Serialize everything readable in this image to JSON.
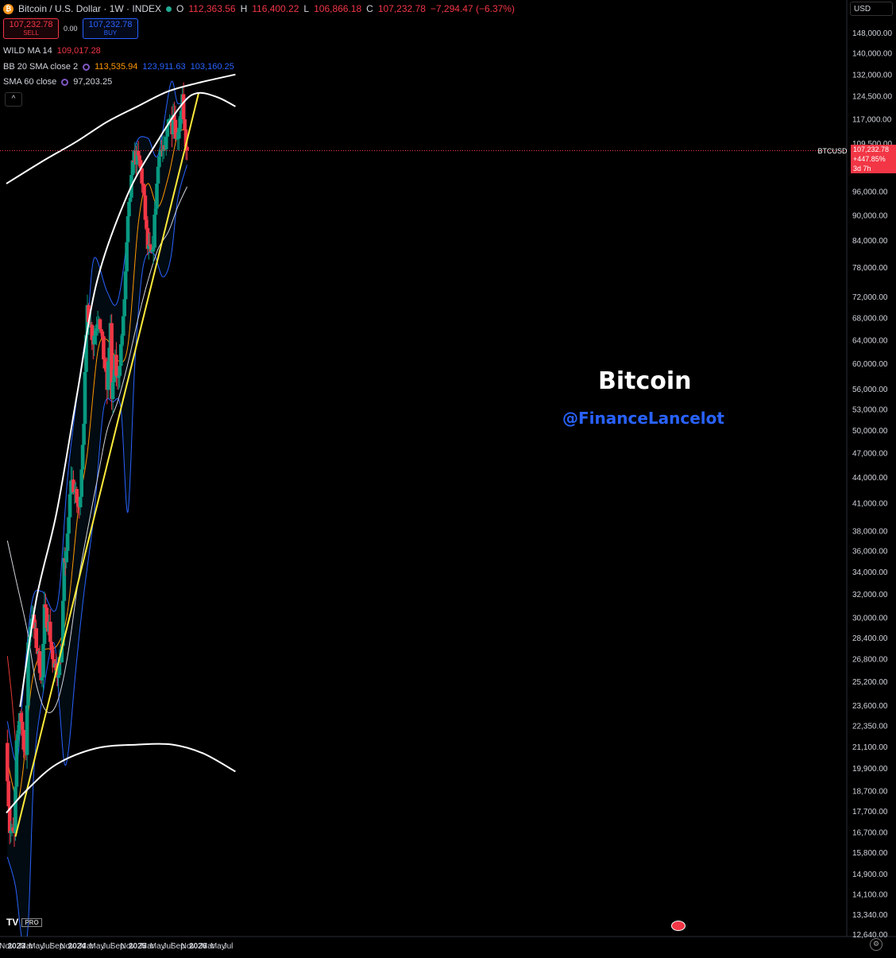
{
  "header": {
    "symbol": "Bitcoin / U.S. Dollar · 1W · INDEX",
    "o_label": "O",
    "o": "112,363.56",
    "h_label": "H",
    "h": "116,400.22",
    "l_label": "L",
    "l": "106,866.18",
    "c_label": "C",
    "c": "107,232.78",
    "change": "−7,294.47 (−6.37%)"
  },
  "trade": {
    "sell_price": "107,232.78",
    "sell_label": "SELL",
    "spread": "0.00",
    "buy_price": "107,232.78",
    "buy_label": "BUY"
  },
  "indicators": [
    {
      "name": "WILD MA 14",
      "values": [
        {
          "v": "109,017.28",
          "color": "#f23645"
        }
      ]
    },
    {
      "name": "BB 20 SMA close 2",
      "values": [
        {
          "v": "113,535.94",
          "color": "#ff9800"
        },
        {
          "v": "123,911.63",
          "color": "#2962ff"
        },
        {
          "v": "103,160.25",
          "color": "#2962ff"
        }
      ]
    },
    {
      "name": "SMA 60 close",
      "values": [
        {
          "v": "97,203.25",
          "color": "#d1d4dc"
        }
      ]
    }
  ],
  "currency": "USD",
  "last_price_tag": {
    "symbol": "BTCUSD",
    "price": "107,232.78",
    "change": "+447.85%",
    "countdown": "3d 7h"
  },
  "watermark": {
    "title": "Bitcoin",
    "handle": "@FinanceLancelot"
  },
  "branding": {
    "logo": "TV",
    "badge": "PRO"
  },
  "chart_data": {
    "type": "candlestick",
    "title": "Bitcoin / U.S. Dollar · 1W · INDEX",
    "y_scale": "log",
    "ylim": [
      12000,
      165000
    ],
    "y_ticks": [
      "148,000.00",
      "140,000.00",
      "132,000.00",
      "124,500.00",
      "117,000.00",
      "109,500.00",
      "96,000.00",
      "90,000.00",
      "84,000.00",
      "78,000.00",
      "72,000.00",
      "68,000.00",
      "64,000.00",
      "60,000.00",
      "56,000.00",
      "53,000.00",
      "50,000.00",
      "47,000.00",
      "44,000.00",
      "41,000.00",
      "38,000.00",
      "36,000.00",
      "34,000.00",
      "32,000.00",
      "30,000.00",
      "28,400.00",
      "26,800.00",
      "25,200.00",
      "23,600.00",
      "22,350.00",
      "21,100.00",
      "19,900.00",
      "18,700.00",
      "17,700.00",
      "16,700.00",
      "15,800.00",
      "14,900.00",
      "14,100.00",
      "13,340.00",
      "12,640.00"
    ],
    "x_ticks": [
      "Nov",
      "2023",
      "Mar",
      "May",
      "Jul",
      "Sep",
      "Nov",
      "2024",
      "Mar",
      "May",
      "Jul",
      "Sep",
      "Nov",
      "2025",
      "Mar",
      "May",
      "Jul",
      "Sep",
      "Nov",
      "2026",
      "Mar",
      "May",
      "Jul"
    ],
    "last_price": 107232.78,
    "anchors": [
      [
        "2022-11-07",
        21300
      ],
      [
        "2022-11-28",
        16800
      ],
      [
        "2022-12-26",
        16500
      ],
      [
        "2023-01-09",
        21000
      ],
      [
        "2023-01-30",
        23300
      ],
      [
        "2023-03-06",
        20200
      ],
      [
        "2023-03-20",
        28000
      ],
      [
        "2023-04-10",
        30300
      ],
      [
        "2023-05-01",
        28500
      ],
      [
        "2023-06-12",
        25300
      ],
      [
        "2023-06-26",
        30500
      ],
      [
        "2023-07-24",
        29300
      ],
      [
        "2023-08-21",
        26000
      ],
      [
        "2023-09-11",
        25800
      ],
      [
        "2023-10-09",
        27500
      ],
      [
        "2023-10-23",
        34500
      ],
      [
        "2023-11-13",
        37000
      ],
      [
        "2023-12-04",
        44000
      ],
      [
        "2024-01-22",
        40000
      ],
      [
        "2024-02-19",
        52000
      ],
      [
        "2024-03-11",
        70000
      ],
      [
        "2024-04-15",
        64000
      ],
      [
        "2024-05-20",
        69000
      ],
      [
        "2024-07-08",
        56000
      ],
      [
        "2024-07-29",
        67000
      ],
      [
        "2024-08-05",
        54000
      ],
      [
        "2024-08-26",
        60000
      ],
      [
        "2024-09-09",
        57000
      ],
      [
        "2024-10-14",
        67000
      ],
      [
        "2024-11-11",
        88000
      ],
      [
        "2024-12-16",
        106000
      ],
      [
        "2025-01-20",
        104000
      ],
      [
        "2025-02-10",
        97000
      ],
      [
        "2025-03-10",
        82000
      ],
      [
        "2025-04-07",
        80000
      ],
      [
        "2025-05-19",
        108000
      ],
      [
        "2025-06-23",
        106000
      ],
      [
        "2025-07-14",
        119000
      ],
      [
        "2025-08-04",
        115000
      ],
      [
        "2025-08-11",
        121000
      ],
      [
        "2025-09-01",
        110000
      ],
      [
        "2025-10-06",
        124000
      ],
      [
        "2025-10-13",
        115000
      ],
      [
        "2025-10-27",
        107232.78
      ]
    ],
    "series": [
      {
        "name": "WILD MA 14",
        "color": "#e53935",
        "points": [
          [
            "2022-11-07",
            27000
          ],
          [
            "2022-12-05",
            24000
          ],
          [
            "2023-01-02",
            20600
          ]
        ]
      },
      {
        "name": "BB 20 SMA close 2",
        "color": "#ff9800",
        "points": [
          [
            "2022-11-07",
            20300
          ],
          [
            "2023-01-02",
            18300
          ],
          [
            "2023-02-06",
            19500
          ],
          [
            "2023-04-03",
            25000
          ],
          [
            "2023-06-05",
            27300
          ],
          [
            "2023-09-04",
            27800
          ],
          [
            "2023-11-06",
            30500
          ],
          [
            "2024-01-08",
            40000
          ],
          [
            "2024-03-04",
            47000
          ],
          [
            "2024-05-06",
            62000
          ],
          [
            "2024-07-01",
            64000
          ],
          [
            "2024-09-02",
            60500
          ],
          [
            "2024-11-04",
            63000
          ],
          [
            "2025-01-06",
            88000
          ],
          [
            "2025-03-03",
            98000
          ],
          [
            "2025-05-05",
            92000
          ],
          [
            "2025-07-07",
            100000
          ],
          [
            "2025-09-01",
            112000
          ],
          [
            "2025-10-27",
            113536
          ]
        ]
      },
      {
        "name": "BB 20 SMA close 2 upper",
        "color": "#2962ff",
        "points": [
          [
            "2022-11-07",
            22600
          ],
          [
            "2023-01-02",
            20200
          ],
          [
            "2023-02-06",
            24000
          ],
          [
            "2023-04-03",
            31200
          ],
          [
            "2023-06-05",
            32200
          ],
          [
            "2023-09-04",
            31000
          ],
          [
            "2023-11-06",
            44000
          ],
          [
            "2024-01-08",
            56000
          ],
          [
            "2024-03-04",
            67000
          ],
          [
            "2024-04-15",
            80000
          ],
          [
            "2024-07-01",
            73000
          ],
          [
            "2024-09-02",
            71000
          ],
          [
            "2024-11-04",
            86000
          ],
          [
            "2024-12-16",
            108000
          ],
          [
            "2025-03-03",
            111000
          ],
          [
            "2025-05-05",
            106000
          ],
          [
            "2025-07-21",
            129000
          ],
          [
            "2025-09-01",
            122000
          ],
          [
            "2025-10-27",
            123912
          ]
        ]
      },
      {
        "name": "BB 20 SMA close 2 lower",
        "color": "#2962ff",
        "points": [
          [
            "2022-11-07",
            15600
          ],
          [
            "2022-12-26",
            14400
          ],
          [
            "2023-02-06",
            12400
          ],
          [
            "2023-03-13",
            13000
          ],
          [
            "2023-04-17",
            19800
          ],
          [
            "2023-06-05",
            24000
          ],
          [
            "2023-08-14",
            28000
          ],
          [
            "2023-09-18",
            23500
          ],
          [
            "2023-10-16",
            20200
          ],
          [
            "2023-11-13",
            21000
          ],
          [
            "2023-12-25",
            26000
          ],
          [
            "2024-02-12",
            32000
          ],
          [
            "2024-04-15",
            40000
          ],
          [
            "2024-06-10",
            53000
          ],
          [
            "2024-08-05",
            54000
          ],
          [
            "2024-09-23",
            53000
          ],
          [
            "2024-11-04",
            40000
          ],
          [
            "2024-12-16",
            60000
          ],
          [
            "2025-02-03",
            78000
          ],
          [
            "2025-04-07",
            81000
          ],
          [
            "2025-06-02",
            76000
          ],
          [
            "2025-07-21",
            80000
          ],
          [
            "2025-09-01",
            94000
          ],
          [
            "2025-10-27",
            103160
          ]
        ]
      },
      {
        "name": "SMA 60 close",
        "color": "#d1d4dc",
        "points": [
          [
            "2022-11-07",
            37000
          ],
          [
            "2023-01-02",
            33000
          ],
          [
            "2023-03-06",
            29000
          ],
          [
            "2023-05-01",
            25000
          ],
          [
            "2023-07-03",
            23200
          ],
          [
            "2023-09-04",
            23800
          ],
          [
            "2023-11-06",
            27000
          ],
          [
            "2024-01-08",
            33000
          ],
          [
            "2024-03-04",
            38000
          ],
          [
            "2024-05-06",
            44000
          ],
          [
            "2024-07-01",
            50000
          ],
          [
            "2024-09-02",
            54000
          ],
          [
            "2024-11-04",
            60000
          ],
          [
            "2025-01-06",
            68000
          ],
          [
            "2025-03-03",
            75000
          ],
          [
            "2025-05-05",
            82000
          ],
          [
            "2025-07-07",
            86000
          ],
          [
            "2025-09-01",
            92000
          ],
          [
            "2025-10-27",
            97203
          ]
        ]
      }
    ],
    "trendlines": [
      {
        "color": "#ffeb3b",
        "from": [
          "2022-12-26",
          16500
        ],
        "to": [
          "2026-01-05",
          125500
        ]
      }
    ],
    "curves": [
      {
        "color": "#ffffff",
        "points": [
          [
            "2022-11-01",
            98000
          ],
          [
            "2023-06-01",
            104000
          ],
          [
            "2024-01-01",
            110000
          ],
          [
            "2024-07-01",
            116000
          ],
          [
            "2025-01-01",
            121000
          ],
          [
            "2025-07-01",
            126000
          ],
          [
            "2026-01-01",
            129000
          ],
          [
            "2026-08-15",
            132000
          ]
        ]
      },
      {
        "color": "#ffffff",
        "points": [
          [
            "2023-01-23",
            23500
          ],
          [
            "2023-05-01",
            31500
          ],
          [
            "2023-09-01",
            40000
          ],
          [
            "2024-01-01",
            55000
          ],
          [
            "2024-05-01",
            75000
          ],
          [
            "2024-11-01",
            95000
          ],
          [
            "2025-05-01",
            110000
          ],
          [
            "2025-10-01",
            122000
          ],
          [
            "2026-01-01",
            125500
          ],
          [
            "2026-05-01",
            124000
          ],
          [
            "2026-08-15",
            121000
          ]
        ]
      },
      {
        "color": "#ffffff",
        "points": [
          [
            "2022-11-01",
            17600
          ],
          [
            "2023-03-01",
            18700
          ],
          [
            "2023-09-01",
            20100
          ],
          [
            "2024-05-01",
            21000
          ],
          [
            "2025-01-01",
            21200
          ],
          [
            "2025-08-01",
            21200
          ],
          [
            "2026-02-01",
            20700
          ],
          [
            "2026-08-15",
            19700
          ]
        ]
      }
    ]
  }
}
